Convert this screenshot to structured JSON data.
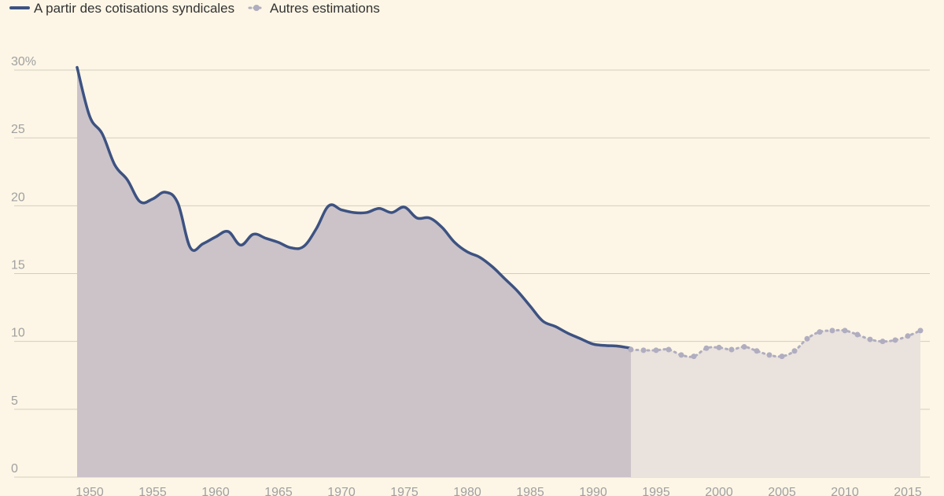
{
  "legend": {
    "series_1_label": "A partir des cotisations syndicales",
    "series_2_label": "Autres estimations"
  },
  "colors": {
    "background": "#fdf6e6",
    "series_1_line": "#3d5282",
    "series_1_fill": "#cbc3c8",
    "series_2_line": "#b0adc0",
    "series_2_fill": "#e9e2dd",
    "grid": "#d4cdc0",
    "tick_text": "#a0a0a0"
  },
  "chart_data": {
    "type": "area",
    "title": "",
    "xlabel": "",
    "ylabel": "",
    "xlim": [
      1948,
      2017
    ],
    "ylim": [
      0,
      30
    ],
    "grid": true,
    "legend_position": "top-left",
    "y_ticks": [
      {
        "value": 0,
        "label": "0"
      },
      {
        "value": 5,
        "label": "5"
      },
      {
        "value": 10,
        "label": "10"
      },
      {
        "value": 15,
        "label": "15"
      },
      {
        "value": 20,
        "label": "20"
      },
      {
        "value": 25,
        "label": "25"
      },
      {
        "value": 30,
        "label": "30%"
      }
    ],
    "x_ticks": [
      {
        "value": 1950,
        "label": "1950"
      },
      {
        "value": 1955,
        "label": "1955"
      },
      {
        "value": 1960,
        "label": "1960"
      },
      {
        "value": 1965,
        "label": "1965"
      },
      {
        "value": 1970,
        "label": "1970"
      },
      {
        "value": 1975,
        "label": "1975"
      },
      {
        "value": 1980,
        "label": "1980"
      },
      {
        "value": 1985,
        "label": "1985"
      },
      {
        "value": 1990,
        "label": "1990"
      },
      {
        "value": 1995,
        "label": "1995"
      },
      {
        "value": 2000,
        "label": "2000"
      },
      {
        "value": 2005,
        "label": "2005"
      },
      {
        "value": 2010,
        "label": "2010"
      },
      {
        "value": 2015,
        "label": "2015"
      }
    ],
    "series": [
      {
        "name": "A partir des cotisations syndicales",
        "style": "solid",
        "x": [
          1949,
          1950,
          1951,
          1952,
          1953,
          1954,
          1955,
          1956,
          1957,
          1958,
          1959,
          1960,
          1961,
          1962,
          1963,
          1964,
          1965,
          1966,
          1967,
          1968,
          1969,
          1970,
          1971,
          1972,
          1973,
          1974,
          1975,
          1976,
          1977,
          1978,
          1979,
          1980,
          1981,
          1982,
          1983,
          1984,
          1985,
          1986,
          1987,
          1988,
          1989,
          1990,
          1991,
          1992,
          1993
        ],
        "y": [
          30.2,
          26.6,
          25.3,
          23.0,
          21.9,
          20.3,
          20.5,
          21.0,
          20.2,
          16.9,
          17.2,
          17.7,
          18.1,
          17.1,
          17.9,
          17.6,
          17.3,
          16.9,
          17.0,
          18.3,
          20.0,
          19.7,
          19.5,
          19.5,
          19.8,
          19.5,
          19.9,
          19.1,
          19.1,
          18.4,
          17.3,
          16.6,
          16.2,
          15.5,
          14.6,
          13.7,
          12.6,
          11.5,
          11.1,
          10.6,
          10.2,
          9.8,
          9.7,
          9.65,
          9.5
        ]
      },
      {
        "name": "Autres estimations",
        "style": "dotted",
        "x": [
          1993,
          1994,
          1995,
          1996,
          1997,
          1998,
          1999,
          2000,
          2001,
          2002,
          2003,
          2004,
          2005,
          2006,
          2007,
          2008,
          2009,
          2010,
          2011,
          2012,
          2013,
          2014,
          2015,
          2016
        ],
        "y": [
          9.4,
          9.35,
          9.35,
          9.4,
          9.0,
          8.9,
          9.5,
          9.55,
          9.4,
          9.6,
          9.3,
          9.0,
          8.9,
          9.3,
          10.2,
          10.7,
          10.8,
          10.8,
          10.5,
          10.15,
          10.0,
          10.1,
          10.4,
          10.8
        ]
      }
    ]
  }
}
